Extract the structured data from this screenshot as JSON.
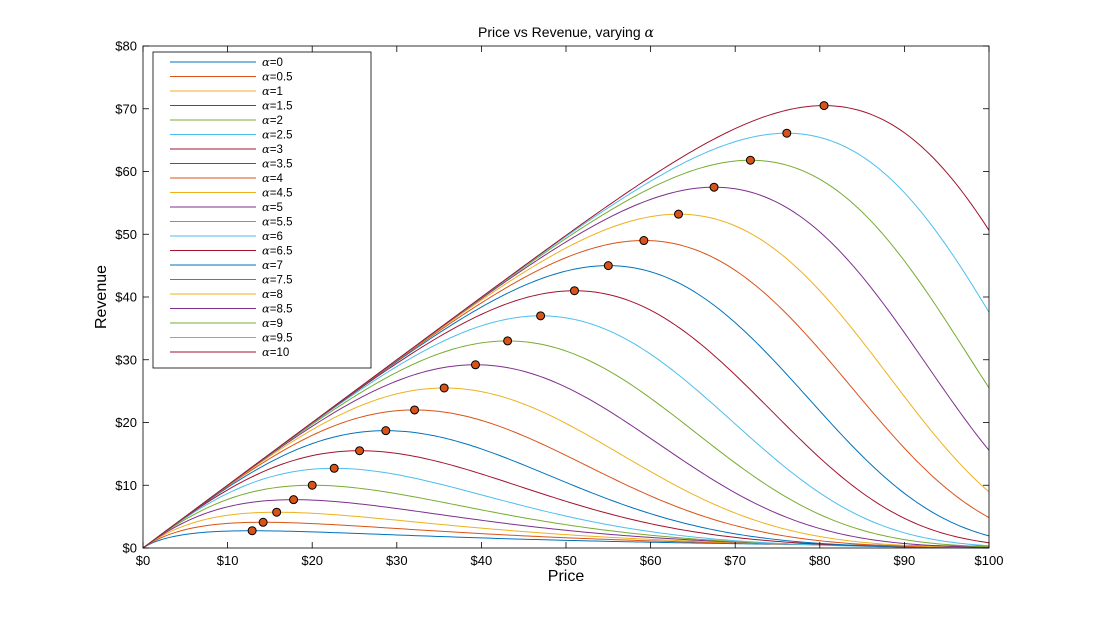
{
  "chart_data": {
    "type": "line",
    "title": "Price vs Revenue, varying",
    "title_symbol": "α",
    "xlabel": "Price",
    "ylabel": "Revenue",
    "xlim": [
      0,
      100
    ],
    "ylim": [
      0,
      80
    ],
    "xticks": [
      0,
      10,
      20,
      30,
      40,
      50,
      60,
      70,
      80,
      90,
      100
    ],
    "yticks": [
      0,
      10,
      20,
      30,
      40,
      50,
      60,
      70,
      80
    ],
    "xtick_labels": [
      "$0",
      "$10",
      "$20",
      "$30",
      "$40",
      "$50",
      "$60",
      "$70",
      "$80",
      "$90",
      "$100"
    ],
    "ytick_labels": [
      "$0",
      "$10",
      "$20",
      "$30",
      "$40",
      "$50",
      "$60",
      "$70",
      "$80"
    ],
    "grid": false,
    "legend_position": "top-left",
    "series_colors": [
      "#0072BD",
      "#D95319",
      "#EDB120",
      "#7E2F8E",
      "#77AC30",
      "#4DBEEE",
      "#A2142F"
    ],
    "marker_fill": "#D95319",
    "marker_edge": "#000000",
    "series": [
      {
        "name": "=0",
        "alpha": 0,
        "peak": [
          12.9,
          2.75
        ]
      },
      {
        "name": "=0.5",
        "alpha": 0.5,
        "peak": [
          14.2,
          4.1
        ]
      },
      {
        "name": "=1",
        "alpha": 1,
        "peak": [
          15.8,
          5.7
        ]
      },
      {
        "name": "=1.5",
        "alpha": 1.5,
        "peak": [
          17.8,
          7.7
        ]
      },
      {
        "name": "=2",
        "alpha": 2,
        "peak": [
          20.0,
          10.0
        ]
      },
      {
        "name": "=2.5",
        "alpha": 2.5,
        "peak": [
          22.6,
          12.7
        ]
      },
      {
        "name": "=3",
        "alpha": 3,
        "peak": [
          25.6,
          15.5
        ]
      },
      {
        "name": "=3.5",
        "alpha": 3.5,
        "peak": [
          28.7,
          18.7
        ]
      },
      {
        "name": "=4",
        "alpha": 4,
        "peak": [
          32.1,
          22.0
        ]
      },
      {
        "name": "=4.5",
        "alpha": 4.5,
        "peak": [
          35.6,
          25.5
        ]
      },
      {
        "name": "=5",
        "alpha": 5,
        "peak": [
          39.3,
          29.2
        ]
      },
      {
        "name": "=5.5",
        "alpha": 5.5,
        "peak": [
          43.1,
          33.0
        ]
      },
      {
        "name": "=6",
        "alpha": 6,
        "peak": [
          47.0,
          37.0
        ]
      },
      {
        "name": "=6.5",
        "alpha": 6.5,
        "peak": [
          51.0,
          41.0
        ]
      },
      {
        "name": "=7",
        "alpha": 7,
        "peak": [
          55.0,
          45.0
        ]
      },
      {
        "name": "=7.5",
        "alpha": 7.5,
        "peak": [
          59.2,
          49.0
        ]
      },
      {
        "name": "=8",
        "alpha": 8,
        "peak": [
          63.3,
          53.2
        ]
      },
      {
        "name": "=8.5",
        "alpha": 8.5,
        "peak": [
          67.5,
          57.5
        ]
      },
      {
        "name": "=9",
        "alpha": 9,
        "peak": [
          71.8,
          61.8
        ]
      },
      {
        "name": "=9.5",
        "alpha": 9.5,
        "peak": [
          76.1,
          66.1
        ]
      },
      {
        "name": "=10",
        "alpha": 10,
        "peak": [
          80.5,
          70.5
        ]
      }
    ]
  }
}
